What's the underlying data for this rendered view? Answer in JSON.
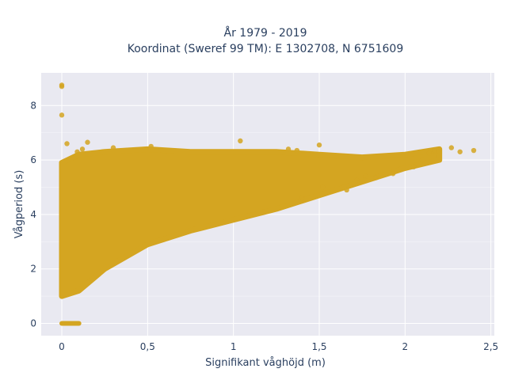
{
  "chart_data": {
    "type": "scatter",
    "title_lines": [
      "År 1979 - 2019",
      "Koordinat (Sweref 99 TM): E 1302708, N 6751609"
    ],
    "xlabel": "Signifikant våghöjd (m)",
    "ylabel": "Vågperiod (s)",
    "xlim": [
      -0.12,
      2.52
    ],
    "ylim": [
      -0.45,
      9.2
    ],
    "x_ticks": [
      0,
      0.5,
      1,
      1.5,
      2,
      2.5
    ],
    "x_tick_labels": [
      "0",
      "0,5",
      "1",
      "1,5",
      "2",
      "2,5"
    ],
    "y_ticks": [
      0,
      2,
      4,
      6,
      8
    ],
    "y_tick_labels": [
      "0",
      "2",
      "4",
      "6",
      "8"
    ],
    "grid": true,
    "legend": "none",
    "background_color": "#e9e9f1",
    "point_color": "#d4a521",
    "envelope": {
      "x": [
        0.0,
        0.1,
        0.25,
        0.5,
        0.75,
        1.0,
        1.25,
        1.5,
        1.75,
        2.0,
        2.2
      ],
      "y_low": [
        1.0,
        1.2,
        2.0,
        2.9,
        3.4,
        3.8,
        4.2,
        4.7,
        5.2,
        5.7,
        6.0
      ],
      "y_high": [
        5.9,
        6.2,
        6.3,
        6.4,
        6.3,
        6.3,
        6.3,
        6.2,
        6.1,
        6.2,
        6.4
      ]
    },
    "points": [
      {
        "x": 0.0,
        "y": 8.7
      },
      {
        "x": 0.0,
        "y": 8.75
      },
      {
        "x": 0.0,
        "y": 7.65
      },
      {
        "x": 0.03,
        "y": 6.6
      },
      {
        "x": 0.09,
        "y": 6.3
      },
      {
        "x": 0.12,
        "y": 6.4
      },
      {
        "x": 0.15,
        "y": 6.65
      },
      {
        "x": 0.3,
        "y": 6.45
      },
      {
        "x": 0.52,
        "y": 6.5
      },
      {
        "x": 1.04,
        "y": 6.7
      },
      {
        "x": 1.32,
        "y": 6.4
      },
      {
        "x": 1.37,
        "y": 6.35
      },
      {
        "x": 1.5,
        "y": 6.55
      },
      {
        "x": 1.4,
        "y": 4.6
      },
      {
        "x": 1.52,
        "y": 5.0
      },
      {
        "x": 1.66,
        "y": 4.9
      },
      {
        "x": 1.72,
        "y": 5.25
      },
      {
        "x": 1.77,
        "y": 5.4
      },
      {
        "x": 1.83,
        "y": 5.35
      },
      {
        "x": 1.93,
        "y": 5.5
      },
      {
        "x": 2.05,
        "y": 5.75
      },
      {
        "x": 2.1,
        "y": 6.0
      },
      {
        "x": 2.14,
        "y": 6.25
      },
      {
        "x": 2.17,
        "y": 6.35
      },
      {
        "x": 2.2,
        "y": 6.3
      },
      {
        "x": 2.27,
        "y": 6.45
      },
      {
        "x": 2.32,
        "y": 6.3
      },
      {
        "x": 2.4,
        "y": 6.35
      }
    ],
    "zero_row": {
      "y": 0,
      "x_from": 0.0,
      "x_to": 0.1
    }
  }
}
